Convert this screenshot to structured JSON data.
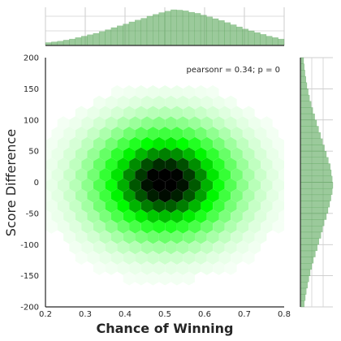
{
  "chart_data": {
    "type": "heatmap",
    "subtype": "hexbin joint plot with marginal histograms",
    "xlabel": "Chance of Winning",
    "ylabel": "Score Difference",
    "xlim": [
      0.2,
      0.8
    ],
    "ylim": [
      -200,
      200
    ],
    "xticks": [
      "0.2",
      "0.3",
      "0.4",
      "0.5",
      "0.6",
      "0.7",
      "0.8"
    ],
    "yticks": [
      "-200",
      "-150",
      "-100",
      "-50",
      "0",
      "50",
      "100",
      "150",
      "200"
    ],
    "annotation": "pearsonr = 0.34; p = 0",
    "density_center": {
      "x": 0.5,
      "y": 0
    },
    "density_spread": {
      "x": 0.1,
      "y": 50
    },
    "colors": {
      "hex": "#00ff00",
      "dark": "#000000",
      "hist": "#59a659"
    },
    "marginal_x": {
      "bin_start": 0.2,
      "bin_width": 0.015,
      "heights": [
        0.08,
        0.1,
        0.12,
        0.15,
        0.18,
        0.22,
        0.26,
        0.3,
        0.34,
        0.39,
        0.44,
        0.5,
        0.55,
        0.6,
        0.66,
        0.71,
        0.76,
        0.82,
        0.87,
        0.92,
        0.96,
        1.0,
        0.99,
        0.97,
        0.93,
        0.9,
        0.85,
        0.8,
        0.75,
        0.7,
        0.64,
        0.58,
        0.52,
        0.46,
        0.41,
        0.36,
        0.31,
        0.26,
        0.22,
        0.18
      ]
    },
    "marginal_y": {
      "bin_start": -200,
      "bin_width": 10,
      "heights": [
        0.12,
        0.15,
        0.18,
        0.22,
        0.26,
        0.3,
        0.35,
        0.4,
        0.46,
        0.52,
        0.57,
        0.63,
        0.68,
        0.73,
        0.8,
        0.85,
        0.9,
        0.94,
        0.98,
        1.0,
        0.98,
        0.95,
        0.92,
        0.86,
        0.8,
        0.74,
        0.68,
        0.62,
        0.56,
        0.5,
        0.44,
        0.38,
        0.33,
        0.28,
        0.24,
        0.2,
        0.17,
        0.14,
        0.12,
        0.1
      ]
    }
  }
}
